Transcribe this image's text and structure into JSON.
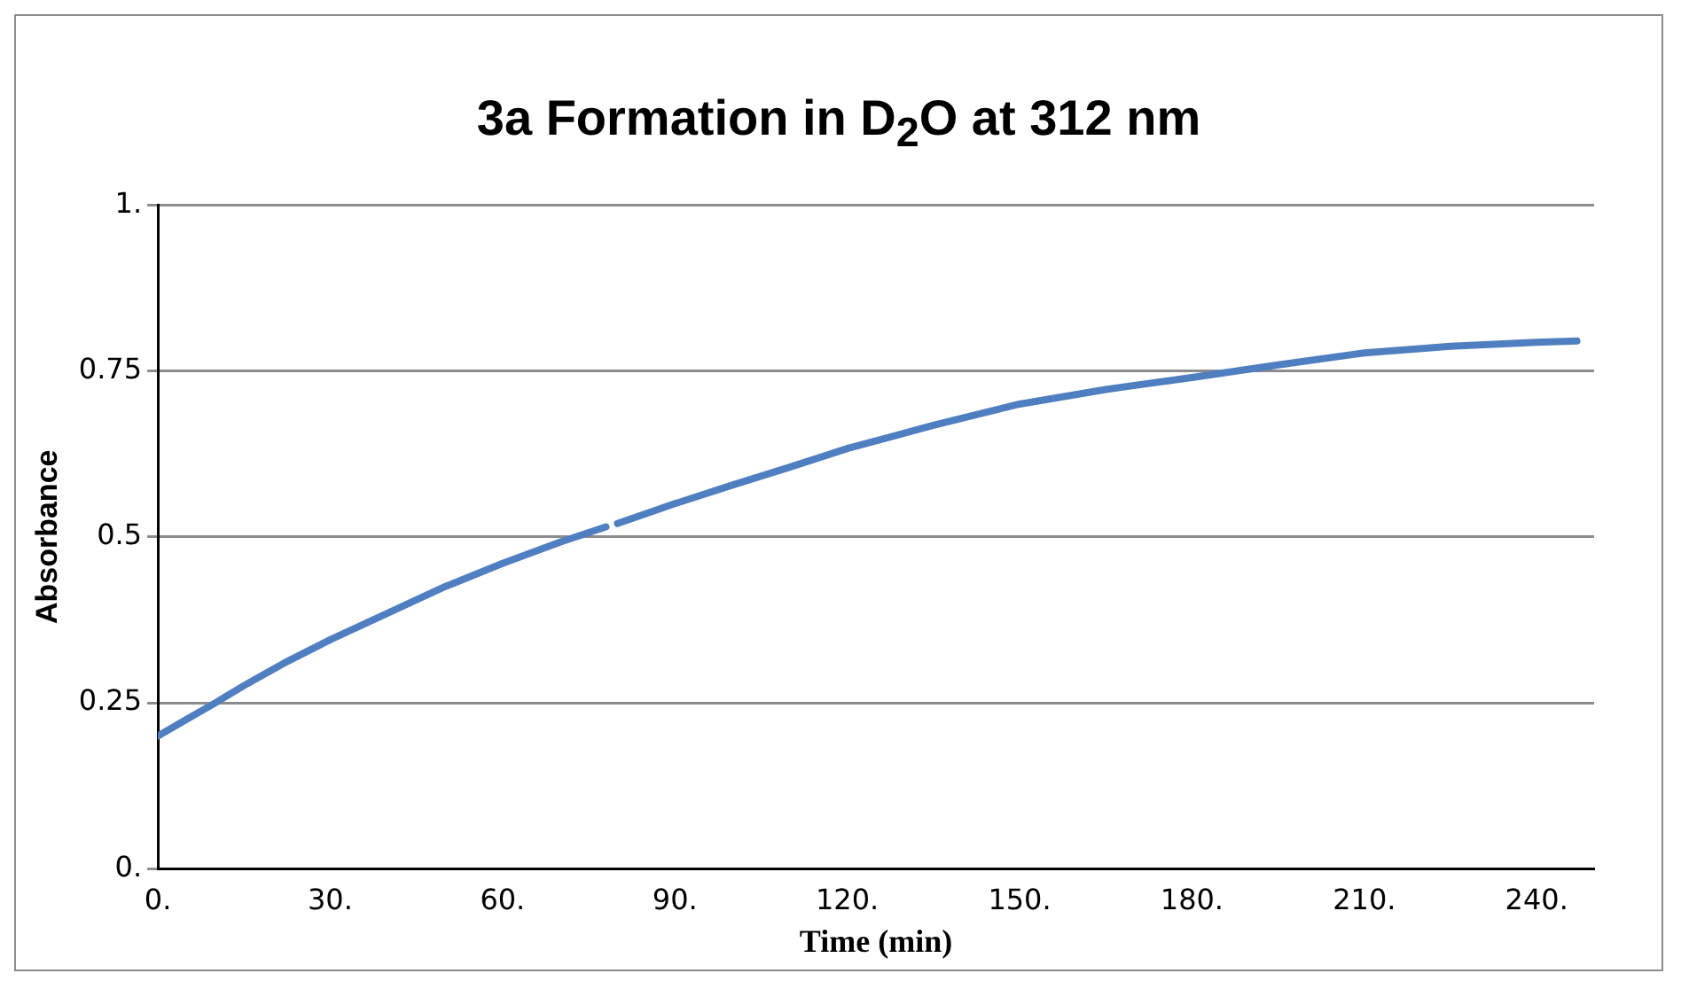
{
  "chart_data": {
    "type": "line",
    "title": "3a Formation in D$_{2}$O at 312 nm",
    "xlabel": "Time (min)",
    "ylabel": "Absorbance",
    "x": [
      0,
      5,
      10,
      15,
      22,
      30,
      40,
      50,
      60,
      70,
      78,
      79,
      80,
      90,
      100,
      110,
      120,
      135,
      150,
      165,
      180,
      195,
      210,
      225,
      240,
      247
    ],
    "series": [
      {
        "color": "#4f7fc1",
        "values": [
          0.2,
          0.225,
          0.25,
          0.276,
          0.31,
          0.345,
          0.385,
          0.425,
          0.46,
          0.492,
          0.515,
          null,
          0.52,
          0.55,
          0.578,
          0.605,
          0.633,
          0.668,
          0.7,
          0.722,
          0.74,
          0.759,
          0.777,
          0.787,
          0.793,
          0.795
        ]
      }
    ],
    "xlim": [
      0,
      250
    ],
    "xticks": [
      {
        "value": 0,
        "label": "0."
      },
      {
        "value": 30,
        "label": "30."
      },
      {
        "value": 60,
        "label": "60."
      },
      {
        "value": 90,
        "label": "90."
      },
      {
        "value": 120,
        "label": "120."
      },
      {
        "value": 150,
        "label": "150."
      },
      {
        "value": 180,
        "label": "180."
      },
      {
        "value": 210,
        "label": "210."
      },
      {
        "value": 240,
        "label": "240."
      }
    ],
    "ylim": [
      0,
      1
    ],
    "yticks": [
      {
        "value": 0,
        "label": "0."
      },
      0.25,
      0.5,
      0.75,
      {
        "value": 1,
        "label": "1."
      }
    ],
    "grid": "y",
    "legend": false,
    "marker": "none",
    "line_style": "solid"
  }
}
